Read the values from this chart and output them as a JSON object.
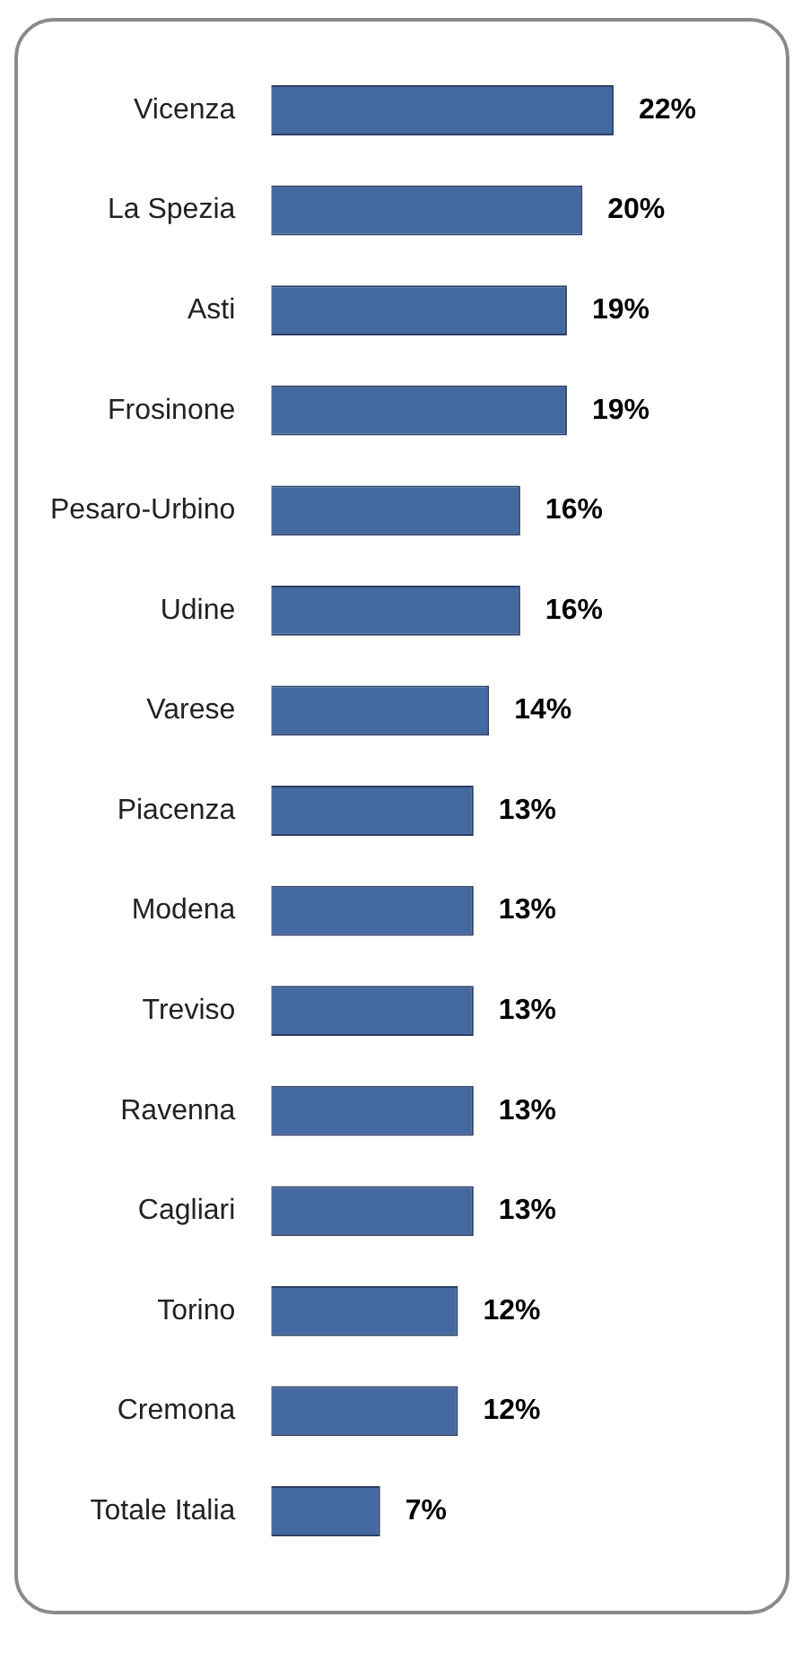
{
  "chart_data": {
    "type": "bar",
    "orientation": "horizontal",
    "categories": [
      "Vicenza",
      "La Spezia",
      "Asti",
      "Frosinone",
      "Pesaro-Urbino",
      "Udine",
      "Varese",
      "Piacenza",
      "Modena",
      "Treviso",
      "Ravenna",
      "Cagliari",
      "Torino",
      "Cremona",
      "Totale Italia"
    ],
    "values": [
      22,
      20,
      19,
      19,
      16,
      16,
      14,
      13,
      13,
      13,
      13,
      13,
      12,
      12,
      7
    ],
    "value_labels": [
      "22%",
      "20%",
      "19%",
      "19%",
      "16%",
      "16%",
      "14%",
      "13%",
      "13%",
      "13%",
      "13%",
      "13%",
      "12%",
      "12%",
      "7%"
    ],
    "color": "#4469a0"
  }
}
